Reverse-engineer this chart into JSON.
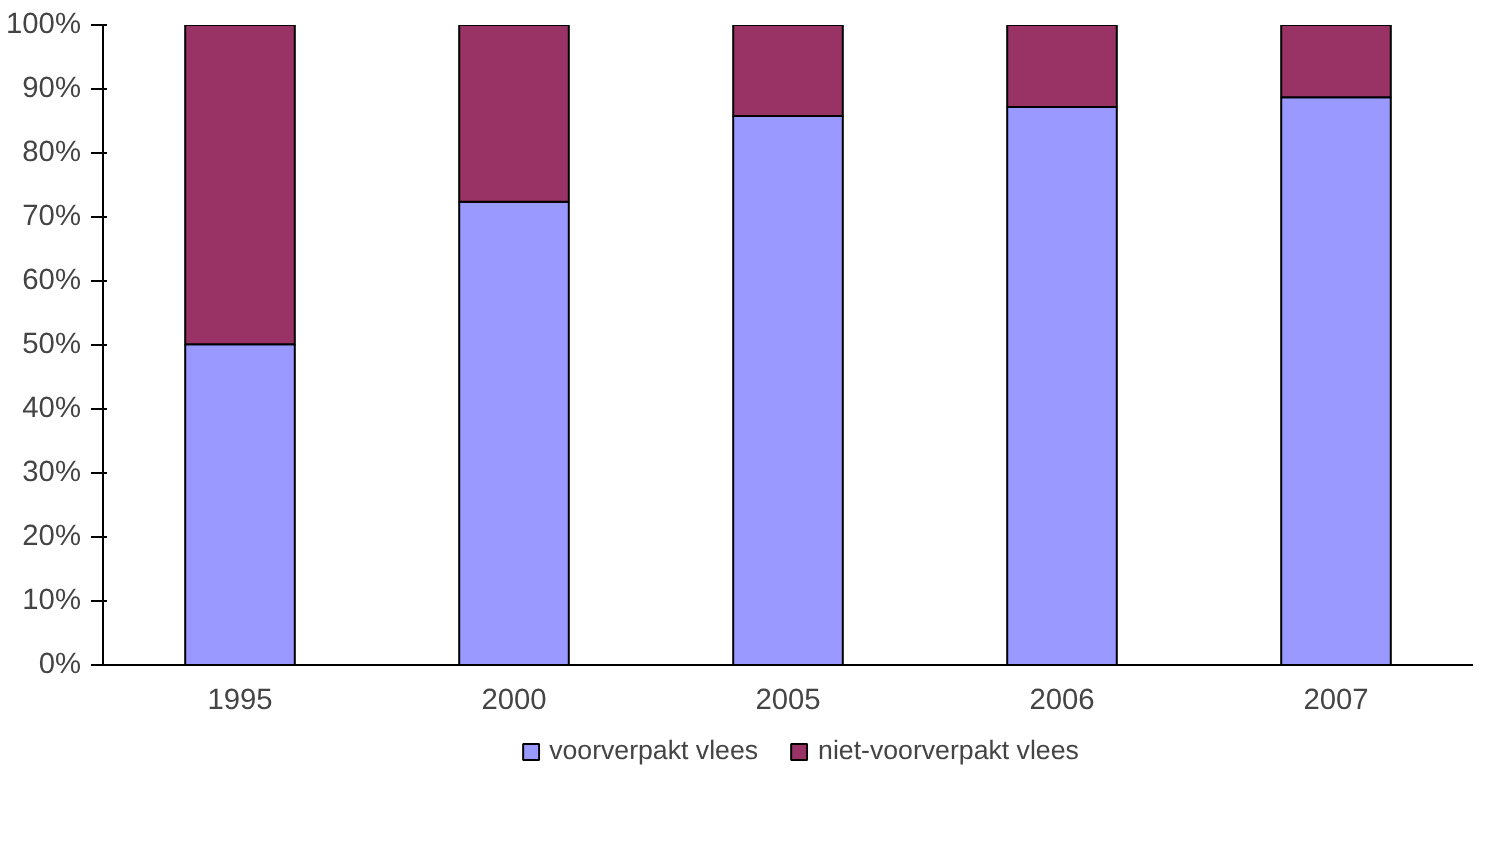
{
  "chart_data": {
    "type": "bar",
    "stacked": true,
    "categories": [
      "1995",
      "2000",
      "2005",
      "2006",
      "2007"
    ],
    "series": [
      {
        "name": "voorverpakt vlees",
        "color": "#9999ff",
        "values": [
          50.1,
          72.4,
          85.8,
          87.2,
          88.7
        ]
      },
      {
        "name": "niet-voorverpakt vlees",
        "color": "#993366",
        "values": [
          49.9,
          27.6,
          14.2,
          12.8,
          11.3
        ]
      }
    ],
    "ylim": [
      0,
      100
    ],
    "yticks": [
      {
        "value": 0,
        "label": "0%"
      },
      {
        "value": 10,
        "label": "10%"
      },
      {
        "value": 20,
        "label": "20%"
      },
      {
        "value": 30,
        "label": "30%"
      },
      {
        "value": 40,
        "label": "40%"
      },
      {
        "value": 50,
        "label": "50%"
      },
      {
        "value": 60,
        "label": "60%"
      },
      {
        "value": 70,
        "label": "70%"
      },
      {
        "value": 80,
        "label": "80%"
      },
      {
        "value": 90,
        "label": "90%"
      },
      {
        "value": 100,
        "label": "100%"
      }
    ],
    "legend": "bottom",
    "grid": false
  }
}
